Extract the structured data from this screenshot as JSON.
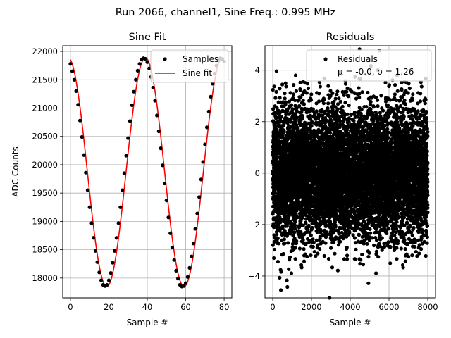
{
  "figure_title": "Run 2066, channel1, Sine Freq.: 0.995 MHz",
  "chart_data": [
    {
      "type": "line",
      "title": "Sine Fit",
      "xlabel": "Sample #",
      "ylabel": "ADC Counts",
      "xlim": [
        -4,
        84
      ],
      "ylim": [
        17650,
        22100
      ],
      "xticks": [
        0,
        20,
        40,
        60,
        80
      ],
      "xtick_labels": [
        "0",
        "20",
        "40",
        "60",
        "80"
      ],
      "yticks": [
        18000,
        18500,
        19000,
        19500,
        20000,
        20500,
        21000,
        21500,
        22000
      ],
      "ytick_labels": [
        "18000",
        "18500",
        "19000",
        "19500",
        "20000",
        "20500",
        "21000",
        "21500",
        "22000"
      ],
      "grid": true,
      "legend": {
        "location": "top-right",
        "entries": [
          "Samples",
          "Sine fit"
        ]
      },
      "fit_params": {
        "center": 19870,
        "amplitude": 2020,
        "period": 40.2,
        "peak_at": 39.0
      },
      "series": [
        {
          "name": "Samples",
          "style": "markers",
          "color": "#000000",
          "x": [
            0,
            1,
            2,
            3,
            4,
            5,
            6,
            7,
            8,
            9,
            10,
            11,
            12,
            13,
            14,
            15,
            16,
            17,
            18,
            19,
            20,
            21,
            22,
            23,
            24,
            25,
            26,
            27,
            28,
            29,
            30,
            31,
            32,
            33,
            34,
            35,
            36,
            37,
            38,
            39,
            40,
            41,
            42,
            43,
            44,
            45,
            46,
            47,
            48,
            49,
            50,
            51,
            52,
            53,
            54,
            55,
            56,
            57,
            58,
            59,
            60,
            61,
            62,
            63,
            64,
            65,
            66,
            67,
            68,
            69,
            70,
            71,
            72,
            73,
            74,
            75,
            76,
            77,
            78,
            79,
            80
          ],
          "y": [
            21780,
            21650,
            21500,
            21300,
            21060,
            20780,
            20490,
            20170,
            19860,
            19550,
            19250,
            18970,
            18710,
            18480,
            18280,
            18100,
            17960,
            17880,
            17860,
            17880,
            17960,
            18090,
            18270,
            18480,
            18710,
            18970,
            19250,
            19550,
            19850,
            20160,
            20470,
            20770,
            21050,
            21290,
            21500,
            21660,
            21780,
            21860,
            21880,
            21870,
            21810,
            21700,
            21550,
            21360,
            21130,
            20870,
            20590,
            20290,
            19990,
            19670,
            19370,
            19070,
            18790,
            18540,
            18320,
            18130,
            17990,
            17880,
            17850,
            17860,
            17910,
            18020,
            18180,
            18380,
            18610,
            18870,
            19140,
            19430,
            19740,
            20050,
            20360,
            20660,
            20940,
            21200,
            21430,
            21610,
            21750,
            21840,
            21880,
            21860,
            21820
          ]
        },
        {
          "name": "Sine fit",
          "style": "line",
          "color": "#ff0000"
        }
      ]
    },
    {
      "type": "scatter",
      "title": "Residuals",
      "xlabel": "Sample #",
      "ylabel": "",
      "xlim": [
        -400,
        8400
      ],
      "ylim": [
        -4.85,
        4.95
      ],
      "xticks": [
        0,
        2000,
        4000,
        6000,
        8000
      ],
      "xtick_labels": [
        "0",
        "2000",
        "4000",
        "6000",
        "8000"
      ],
      "yticks": [
        -4,
        -2,
        0,
        2,
        4
      ],
      "ytick_labels": [
        "−4",
        "−2",
        "0",
        "2",
        "4"
      ],
      "grid": true,
      "legend": {
        "location": "top-right",
        "entries": [
          "Residuals",
          "μ = -0.0, σ = 1.26"
        ]
      },
      "stats": {
        "mu": -0.0,
        "sigma": 1.26,
        "n": 8000,
        "x_range": [
          0,
          8000
        ]
      },
      "series": [
        {
          "name": "Residuals",
          "style": "markers",
          "color": "#000000"
        }
      ]
    }
  ]
}
